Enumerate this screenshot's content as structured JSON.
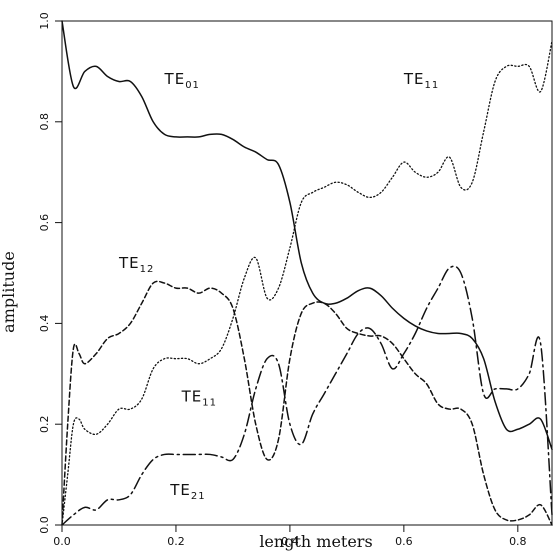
{
  "chart_data": {
    "type": "line",
    "title": "",
    "xlabel": "length meters",
    "ylabel": "amplitude",
    "xlim": [
      0,
      0.86
    ],
    "ylim": [
      0,
      1.0
    ],
    "xticks": [
      0.0,
      0.2,
      0.4,
      0.6,
      0.8
    ],
    "yticks": [
      0.0,
      0.2,
      0.4,
      0.6,
      0.8,
      1.0
    ],
    "xtick_labels": [
      "0.0",
      "0.2",
      "0.4",
      "0.6",
      "0.8"
    ],
    "ytick_labels": [
      "0.0",
      "0.2",
      "0.4",
      "0.6",
      "0.8",
      "1.0"
    ],
    "grid": false,
    "legend": "none",
    "series": [
      {
        "name": "TE01",
        "label_main": "TE",
        "label_sub": "01",
        "style": "solid",
        "color": "#111111",
        "x": [
          0.0,
          0.02,
          0.04,
          0.06,
          0.08,
          0.1,
          0.12,
          0.14,
          0.16,
          0.18,
          0.2,
          0.22,
          0.24,
          0.26,
          0.28,
          0.3,
          0.32,
          0.34,
          0.36,
          0.38,
          0.4,
          0.42,
          0.44,
          0.46,
          0.48,
          0.5,
          0.52,
          0.54,
          0.56,
          0.58,
          0.6,
          0.62,
          0.64,
          0.66,
          0.68,
          0.7,
          0.72,
          0.74,
          0.76,
          0.78,
          0.8,
          0.82,
          0.84,
          0.86
        ],
        "y": [
          1.0,
          0.87,
          0.9,
          0.91,
          0.89,
          0.88,
          0.88,
          0.85,
          0.8,
          0.775,
          0.77,
          0.77,
          0.77,
          0.775,
          0.775,
          0.765,
          0.75,
          0.74,
          0.725,
          0.715,
          0.64,
          0.52,
          0.46,
          0.44,
          0.44,
          0.45,
          0.465,
          0.47,
          0.455,
          0.43,
          0.41,
          0.395,
          0.385,
          0.38,
          0.38,
          0.38,
          0.37,
          0.33,
          0.245,
          0.19,
          0.19,
          0.2,
          0.21,
          0.15
        ]
      },
      {
        "name": "TE11",
        "label_main": "TE",
        "label_sub": "11",
        "style": "dotted",
        "color": "#111111",
        "x": [
          0.0,
          0.01,
          0.02,
          0.03,
          0.04,
          0.06,
          0.08,
          0.1,
          0.12,
          0.14,
          0.16,
          0.18,
          0.2,
          0.22,
          0.24,
          0.26,
          0.28,
          0.3,
          0.32,
          0.34,
          0.36,
          0.38,
          0.4,
          0.42,
          0.44,
          0.46,
          0.48,
          0.5,
          0.52,
          0.54,
          0.56,
          0.58,
          0.6,
          0.62,
          0.64,
          0.66,
          0.68,
          0.7,
          0.72,
          0.74,
          0.76,
          0.78,
          0.8,
          0.82,
          0.84,
          0.86
        ],
        "y": [
          0.0,
          0.1,
          0.2,
          0.21,
          0.19,
          0.18,
          0.2,
          0.23,
          0.23,
          0.25,
          0.31,
          0.33,
          0.33,
          0.33,
          0.32,
          0.33,
          0.35,
          0.41,
          0.49,
          0.53,
          0.45,
          0.47,
          0.55,
          0.64,
          0.66,
          0.67,
          0.68,
          0.675,
          0.66,
          0.65,
          0.66,
          0.69,
          0.72,
          0.7,
          0.69,
          0.7,
          0.73,
          0.67,
          0.68,
          0.78,
          0.88,
          0.91,
          0.91,
          0.91,
          0.86,
          0.96
        ]
      },
      {
        "name": "TE12",
        "label_main": "TE",
        "label_sub": "12",
        "style": "dashed",
        "color": "#111111",
        "x": [
          0.0,
          0.01,
          0.02,
          0.03,
          0.04,
          0.06,
          0.08,
          0.1,
          0.12,
          0.14,
          0.16,
          0.18,
          0.2,
          0.22,
          0.24,
          0.26,
          0.28,
          0.3,
          0.32,
          0.34,
          0.36,
          0.38,
          0.4,
          0.42,
          0.44,
          0.46,
          0.48,
          0.5,
          0.52,
          0.54,
          0.56,
          0.58,
          0.6,
          0.62,
          0.64,
          0.66,
          0.68,
          0.7,
          0.72,
          0.74,
          0.76,
          0.78,
          0.8,
          0.82,
          0.84,
          0.86
        ],
        "y": [
          0.0,
          0.2,
          0.35,
          0.34,
          0.32,
          0.34,
          0.37,
          0.38,
          0.4,
          0.44,
          0.48,
          0.48,
          0.47,
          0.47,
          0.46,
          0.47,
          0.46,
          0.43,
          0.33,
          0.2,
          0.13,
          0.17,
          0.33,
          0.42,
          0.44,
          0.44,
          0.42,
          0.39,
          0.38,
          0.375,
          0.375,
          0.36,
          0.33,
          0.3,
          0.28,
          0.24,
          0.23,
          0.23,
          0.2,
          0.1,
          0.03,
          0.01,
          0.01,
          0.02,
          0.04,
          0.0
        ]
      },
      {
        "name": "TE21",
        "label_main": "TE",
        "label_sub": "21",
        "style": "dashdot",
        "color": "#111111",
        "x": [
          0.0,
          0.02,
          0.04,
          0.06,
          0.08,
          0.1,
          0.12,
          0.14,
          0.16,
          0.18,
          0.2,
          0.22,
          0.24,
          0.26,
          0.28,
          0.3,
          0.32,
          0.34,
          0.36,
          0.38,
          0.4,
          0.42,
          0.44,
          0.46,
          0.48,
          0.5,
          0.52,
          0.54,
          0.56,
          0.58,
          0.6,
          0.62,
          0.64,
          0.66,
          0.68,
          0.7,
          0.72,
          0.74,
          0.76,
          0.78,
          0.8,
          0.82,
          0.84,
          0.86
        ],
        "y": [
          0.0,
          0.02,
          0.035,
          0.03,
          0.05,
          0.05,
          0.06,
          0.1,
          0.13,
          0.14,
          0.14,
          0.14,
          0.14,
          0.14,
          0.135,
          0.13,
          0.18,
          0.27,
          0.33,
          0.32,
          0.2,
          0.16,
          0.22,
          0.26,
          0.3,
          0.34,
          0.38,
          0.39,
          0.36,
          0.31,
          0.34,
          0.38,
          0.43,
          0.47,
          0.51,
          0.5,
          0.41,
          0.26,
          0.27,
          0.27,
          0.27,
          0.3,
          0.36,
          0.02
        ]
      }
    ],
    "annotations": [
      {
        "series": "TE01",
        "main": "TE",
        "sub": "01",
        "x": 0.18,
        "y": 0.875
      },
      {
        "series": "TE11",
        "main": "TE",
        "sub": "11",
        "x": 0.6,
        "y": 0.875
      },
      {
        "series": "TE12",
        "main": "TE",
        "sub": "12",
        "x": 0.1,
        "y": 0.51
      },
      {
        "series": "TE11",
        "main": "TE",
        "sub": "11",
        "x": 0.21,
        "y": 0.245
      },
      {
        "series": "TE21",
        "main": "TE",
        "sub": "21",
        "x": 0.19,
        "y": 0.06
      }
    ]
  }
}
